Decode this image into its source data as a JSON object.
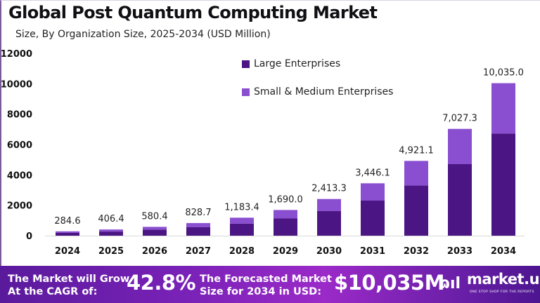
{
  "chart_data": {
    "type": "bar",
    "stacked": true,
    "title": "Global Post Quantum Computing Market",
    "subtitle": "Size, By Organization Size, 2025-2034 (USD Million)",
    "xlabel": "",
    "ylabel": "",
    "ylim": [
      0,
      12000
    ],
    "yticks": [
      0,
      2000,
      4000,
      6000,
      8000,
      10000,
      12000
    ],
    "ytick_labels": [
      "0",
      "2000",
      "4000",
      "6000",
      "8000",
      "10000",
      "12000"
    ],
    "grid": false,
    "legend_position": "top-center",
    "categories": [
      "2024",
      "2025",
      "2026",
      "2027",
      "2028",
      "2029",
      "2030",
      "2031",
      "2032",
      "2033",
      "2034"
    ],
    "totals": [
      284.6,
      406.4,
      580.4,
      828.7,
      1183.4,
      1690.0,
      2413.3,
      3446.1,
      4921.1,
      7027.3,
      10035.0
    ],
    "total_labels": [
      "284.6",
      "406.4",
      "580.4",
      "828.7",
      "1,183.4",
      "1,690.0",
      "2,413.3",
      "3,446.1",
      "4,921.1",
      "7,027.3",
      "10,035.0"
    ],
    "series": [
      {
        "name": "Large Enterprises",
        "color": "#4b1583",
        "values": [
          190,
          272,
          389,
          555,
          793,
          1132,
          1617,
          2309,
          3297,
          4708,
          6723
        ]
      },
      {
        "name": "Small & Medium Enterprises",
        "color": "#8a4fd0",
        "values": [
          94.6,
          134.4,
          191.4,
          273.7,
          390.4,
          558.0,
          796.3,
          1137.1,
          1624.1,
          2319.3,
          3312.0
        ]
      }
    ]
  },
  "banner": {
    "cagr_text_line1": "The Market will Grow",
    "cagr_text_line2": "At the CAGR of:",
    "cagr_value": "42.8%",
    "forecast_text_line1": "The Forecasted Market",
    "forecast_text_line2": "Size for 2034 in USD:",
    "forecast_value": "$10,035M",
    "logo_text": "market.us",
    "logo_tagline": "ONE STOP SHOP FOR THE REPORTS",
    "logo_mark": "ɷıl"
  }
}
